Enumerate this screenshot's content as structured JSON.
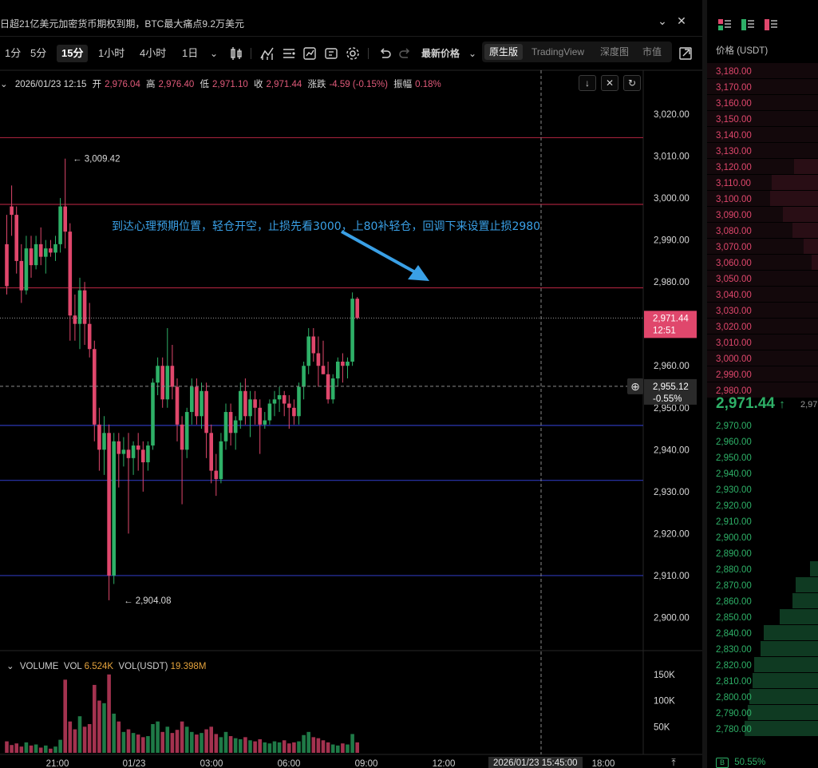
{
  "news": {
    "text": "日超21亿美元加密货币期权到期，BTC最大痛点9.2万美元"
  },
  "toolbar": {
    "timeframes": [
      "1分",
      "5分",
      "15分",
      "1小时",
      "4小时",
      "1日"
    ],
    "active_timeframe": "15分",
    "price_type": "最新价格",
    "views": [
      "原生版",
      "TradingView",
      "深度图",
      "市值"
    ],
    "active_view": "原生版"
  },
  "ohlc": {
    "datetime": "2026/01/23 12:15",
    "open_label": "开",
    "open": "2,976.04",
    "high_label": "高",
    "high": "2,976.40",
    "low_label": "低",
    "low": "2,971.10",
    "close_label": "收",
    "close": "2,971.44",
    "change_label": "涨跌",
    "change": "-4.59 (-0.15%)",
    "amplitude_label": "振幅",
    "amplitude": "0.18%"
  },
  "annotation": {
    "text": "到达心理预期位置，轻仓开空，止损先看3000，上80补轻仓，回调下来设置止损2980"
  },
  "markers": {
    "high": "3,009.42",
    "low": "2,904.08"
  },
  "current_price": {
    "price": "2,971.44",
    "countdown": "12:51"
  },
  "crosshair": {
    "price": "2,955.12",
    "pct": "-0.55%"
  },
  "volume": {
    "title": "VOLUME",
    "vol_label": "VOL",
    "vol_value": "6.524K",
    "volusdt_label": "VOL(USDT)",
    "volusdt_value": "19.398M"
  },
  "footer": {
    "date": "2026/01/23 15:45:00"
  },
  "colors": {
    "up": "#2eb067",
    "down": "#e0476c",
    "red_line": "#a0213a",
    "blue_line": "#2c37b3",
    "current_tag": "#e0476c"
  },
  "orderbook": {
    "header": "价格 (USDT)",
    "mid_price": "2,971.44",
    "mid_extra": "2,97",
    "buy_ratio": "50.55%",
    "buy_badge": "B",
    "asks": [
      "3,180.00",
      "3,170.00",
      "3,160.00",
      "3,150.00",
      "3,140.00",
      "3,130.00",
      "3,120.00",
      "3,110.00",
      "3,100.00",
      "3,090.00",
      "3,080.00",
      "3,070.00",
      "3,060.00",
      "3,050.00",
      "3,040.00",
      "3,030.00",
      "3,020.00",
      "3,010.00",
      "3,000.00",
      "2,990.00",
      "2,980.00"
    ],
    "bids": [
      "2,970.00",
      "2,960.00",
      "2,950.00",
      "2,940.00",
      "2,930.00",
      "2,920.00",
      "2,910.00",
      "2,900.00",
      "2,890.00",
      "2,880.00",
      "2,870.00",
      "2,860.00",
      "2,850.00",
      "2,840.00",
      "2,830.00",
      "2,820.00",
      "2,810.00",
      "2,800.00",
      "2,790.00",
      "2,780.00"
    ]
  },
  "chart_data": {
    "type": "candlestick",
    "symbol_interval": "15分",
    "y_ticks": [
      3020,
      3010,
      3000,
      2990,
      2980,
      2970,
      2960,
      2950,
      2940,
      2930,
      2920,
      2910,
      2900
    ],
    "y_tick_labels": [
      "3,020.00",
      "3,010.00",
      "3,000.00",
      "2,990.00",
      "2,980.00",
      "2,970.00",
      "2,960.00",
      "2,950.00",
      "2,940.00",
      "2,930.00",
      "2,920.00",
      "2,910.00",
      "2,900.00"
    ],
    "ylim": [
      2894,
      3024
    ],
    "x_ticks": [
      "21:00",
      "01/23",
      "03:00",
      "06:00",
      "09:00",
      "12:00",
      "18:00"
    ],
    "vol_ticks": [
      "150K",
      "100K",
      "50K"
    ],
    "vol_tick_values": [
      150,
      100,
      50
    ],
    "horizontal_lines": [
      {
        "price": 3014.4,
        "color": "red"
      },
      {
        "price": 2998.5,
        "color": "red"
      },
      {
        "price": 2978.6,
        "color": "red"
      },
      {
        "price": 2945.8,
        "color": "blue"
      },
      {
        "price": 2932.7,
        "color": "blue"
      },
      {
        "price": 2910.0,
        "color": "blue"
      }
    ],
    "candles": [
      {
        "o": 2989,
        "h": 2996,
        "l": 2977,
        "c": 2979
      },
      {
        "o": 2998,
        "h": 3003,
        "l": 2991,
        "c": 2996
      },
      {
        "o": 2996,
        "h": 2998,
        "l": 2982,
        "c": 2985
      },
      {
        "o": 2985,
        "h": 2989,
        "l": 2975,
        "c": 2978
      },
      {
        "o": 2978,
        "h": 2991,
        "l": 2977,
        "c": 2988
      },
      {
        "o": 2988,
        "h": 2991,
        "l": 2981,
        "c": 2984
      },
      {
        "o": 2984,
        "h": 2991,
        "l": 2983,
        "c": 2989
      },
      {
        "o": 2989,
        "h": 2993,
        "l": 2984,
        "c": 2986
      },
      {
        "o": 2986,
        "h": 2990,
        "l": 2982,
        "c": 2988
      },
      {
        "o": 2988,
        "h": 2990,
        "l": 2986,
        "c": 2987
      },
      {
        "o": 2987,
        "h": 2991,
        "l": 2985,
        "c": 2989
      },
      {
        "o": 2989,
        "h": 3000,
        "l": 2987,
        "c": 2998
      },
      {
        "o": 2998,
        "h": 3009.4,
        "l": 2988,
        "c": 2992
      },
      {
        "o": 2992,
        "h": 2994,
        "l": 2966,
        "c": 2972
      },
      {
        "o": 2972,
        "h": 2977,
        "l": 2966,
        "c": 2970
      },
      {
        "o": 2970,
        "h": 2981,
        "l": 2964,
        "c": 2978
      },
      {
        "o": 2978,
        "h": 2980,
        "l": 2965,
        "c": 2970
      },
      {
        "o": 2970,
        "h": 2975,
        "l": 2962,
        "c": 2964
      },
      {
        "o": 2964,
        "h": 2966,
        "l": 2942,
        "c": 2946
      },
      {
        "o": 2946,
        "h": 2950,
        "l": 2935,
        "c": 2940
      },
      {
        "o": 2940,
        "h": 2948,
        "l": 2934,
        "c": 2944
      },
      {
        "o": 2944,
        "h": 2946,
        "l": 2904.1,
        "c": 2910
      },
      {
        "o": 2910,
        "h": 2944,
        "l": 2908,
        "c": 2942
      },
      {
        "o": 2942,
        "h": 2944,
        "l": 2931,
        "c": 2939
      },
      {
        "o": 2939,
        "h": 2943,
        "l": 2936,
        "c": 2940
      },
      {
        "o": 2940,
        "h": 2944,
        "l": 2920,
        "c": 2938
      },
      {
        "o": 2938,
        "h": 2942,
        "l": 2934,
        "c": 2941
      },
      {
        "o": 2941,
        "h": 2944,
        "l": 2935,
        "c": 2940
      },
      {
        "o": 2940,
        "h": 2942,
        "l": 2930,
        "c": 2937
      },
      {
        "o": 2937,
        "h": 2942,
        "l": 2935,
        "c": 2941
      },
      {
        "o": 2941,
        "h": 2957,
        "l": 2940,
        "c": 2956
      },
      {
        "o": 2956,
        "h": 2962,
        "l": 2953,
        "c": 2960
      },
      {
        "o": 2960,
        "h": 2962,
        "l": 2950,
        "c": 2952
      },
      {
        "o": 2952,
        "h": 2969,
        "l": 2950,
        "c": 2960
      },
      {
        "o": 2960,
        "h": 2965,
        "l": 2952,
        "c": 2955
      },
      {
        "o": 2955,
        "h": 2957,
        "l": 2942,
        "c": 2946
      },
      {
        "o": 2946,
        "h": 2948,
        "l": 2927,
        "c": 2940
      },
      {
        "o": 2940,
        "h": 2950,
        "l": 2938,
        "c": 2949
      },
      {
        "o": 2949,
        "h": 2957,
        "l": 2946,
        "c": 2955
      },
      {
        "o": 2955,
        "h": 2957,
        "l": 2946,
        "c": 2948
      },
      {
        "o": 2948,
        "h": 2956,
        "l": 2945,
        "c": 2954
      },
      {
        "o": 2954,
        "h": 2956,
        "l": 2938,
        "c": 2944
      },
      {
        "o": 2944,
        "h": 2946,
        "l": 2932,
        "c": 2935
      },
      {
        "o": 2935,
        "h": 2939,
        "l": 2929,
        "c": 2933
      },
      {
        "o": 2933,
        "h": 2944,
        "l": 2932,
        "c": 2942
      },
      {
        "o": 2942,
        "h": 2951,
        "l": 2940,
        "c": 2949
      },
      {
        "o": 2949,
        "h": 2951,
        "l": 2941,
        "c": 2944
      },
      {
        "o": 2944,
        "h": 2948,
        "l": 2940,
        "c": 2947
      },
      {
        "o": 2947,
        "h": 2956,
        "l": 2945,
        "c": 2954
      },
      {
        "o": 2954,
        "h": 2957,
        "l": 2946,
        "c": 2948
      },
      {
        "o": 2948,
        "h": 2954,
        "l": 2943,
        "c": 2952
      },
      {
        "o": 2952,
        "h": 2954,
        "l": 2946,
        "c": 2950
      },
      {
        "o": 2950,
        "h": 2952,
        "l": 2939,
        "c": 2946
      },
      {
        "o": 2946,
        "h": 2949,
        "l": 2945,
        "c": 2947
      },
      {
        "o": 2947,
        "h": 2952,
        "l": 2946,
        "c": 2951
      },
      {
        "o": 2951,
        "h": 2954,
        "l": 2948,
        "c": 2952
      },
      {
        "o": 2952,
        "h": 2955,
        "l": 2949,
        "c": 2953
      },
      {
        "o": 2953,
        "h": 2954,
        "l": 2948,
        "c": 2951
      },
      {
        "o": 2951,
        "h": 2953,
        "l": 2945,
        "c": 2950
      },
      {
        "o": 2950,
        "h": 2952,
        "l": 2946,
        "c": 2948
      },
      {
        "o": 2948,
        "h": 2956,
        "l": 2946,
        "c": 2955
      },
      {
        "o": 2955,
        "h": 2961,
        "l": 2952,
        "c": 2960
      },
      {
        "o": 2960,
        "h": 2969,
        "l": 2958,
        "c": 2967
      },
      {
        "o": 2967,
        "h": 2969,
        "l": 2961,
        "c": 2963
      },
      {
        "o": 2963,
        "h": 2967,
        "l": 2955,
        "c": 2960
      },
      {
        "o": 2960,
        "h": 2966,
        "l": 2958,
        "c": 2958
      },
      {
        "o": 2958,
        "h": 2961,
        "l": 2951,
        "c": 2952
      },
      {
        "o": 2952,
        "h": 2958,
        "l": 2951,
        "c": 2957
      },
      {
        "o": 2957,
        "h": 2962,
        "l": 2955,
        "c": 2961
      },
      {
        "o": 2961,
        "h": 2963,
        "l": 2956,
        "c": 2960
      },
      {
        "o": 2960,
        "h": 2962,
        "l": 2957,
        "c": 2961
      },
      {
        "o": 2961,
        "h": 2977.5,
        "l": 2960,
        "c": 2976
      },
      {
        "o": 2976,
        "h": 2976.4,
        "l": 2971.1,
        "c": 2971.4
      }
    ],
    "volumes": [
      22,
      15,
      18,
      12,
      20,
      14,
      16,
      10,
      14,
      8,
      12,
      25,
      140,
      60,
      45,
      70,
      50,
      55,
      130,
      100,
      95,
      150,
      75,
      60,
      40,
      45,
      38,
      35,
      30,
      32,
      55,
      60,
      40,
      50,
      38,
      44,
      60,
      50,
      40,
      35,
      38,
      45,
      50,
      36,
      30,
      40,
      32,
      28,
      26,
      30,
      24,
      22,
      26,
      20,
      18,
      22,
      20,
      24,
      18,
      20,
      22,
      34,
      40,
      30,
      28,
      24,
      20,
      16,
      14,
      18,
      16,
      36,
      20
    ]
  }
}
